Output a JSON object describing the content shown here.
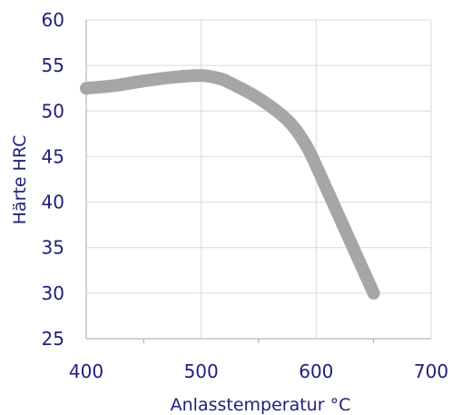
{
  "chart_data": {
    "type": "line",
    "title": "",
    "xlabel": "Anlasstemperatur °C",
    "ylabel": "Härte HRC",
    "xlim": [
      400,
      700
    ],
    "ylim": [
      25,
      60
    ],
    "x_ticks": [
      400,
      500,
      600,
      700
    ],
    "y_ticks": [
      25,
      30,
      35,
      40,
      45,
      50,
      55,
      60
    ],
    "grid": true,
    "legend": "none",
    "series": [
      {
        "color": "#a6a6a6",
        "x": [
          400,
          425,
          450,
          475,
          500,
          515,
          525,
          550,
          575,
          590,
          600,
          625,
          650
        ],
        "y": [
          52.5,
          52.8,
          53.3,
          53.7,
          53.9,
          53.6,
          53.1,
          51.4,
          49.0,
          46.5,
          44.0,
          37.0,
          30.0
        ]
      }
    ],
    "colors": {
      "tick_text": "#1f1f7a",
      "grid": "#d9d9d9",
      "axis": "#a6a6a6"
    }
  }
}
